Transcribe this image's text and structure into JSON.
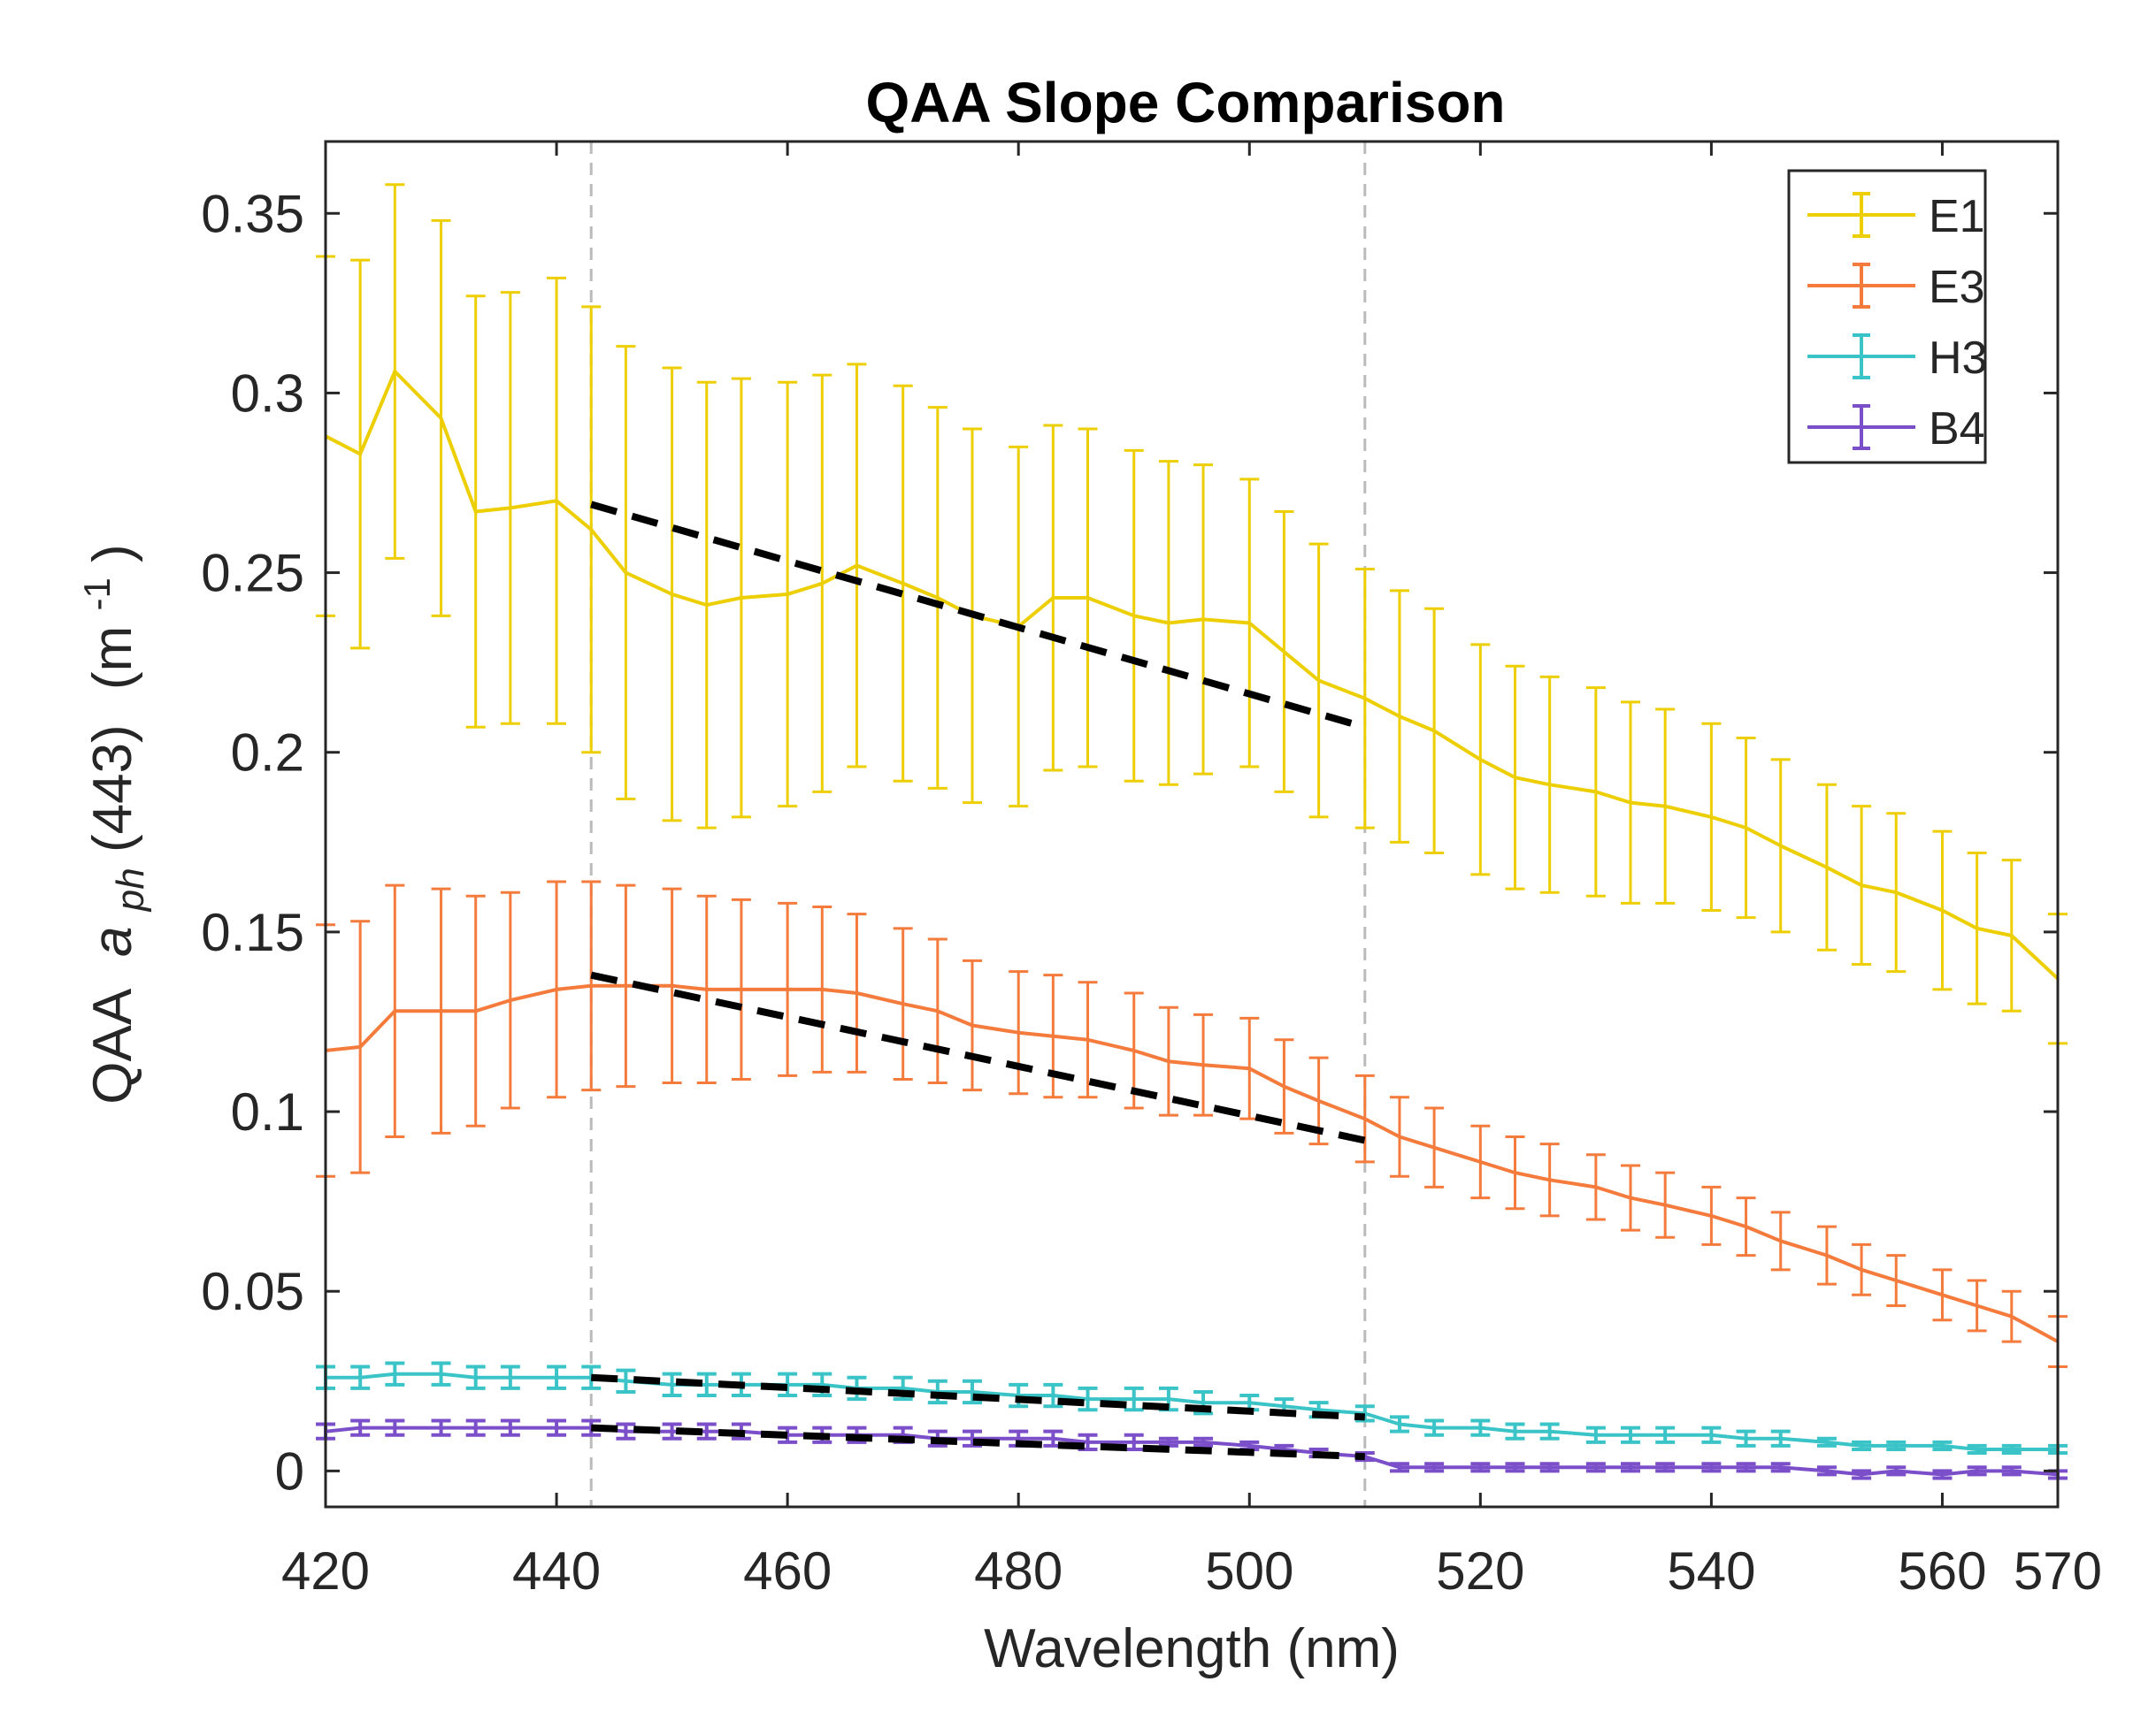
{
  "chart_data": {
    "type": "line",
    "title": "QAA Slope Comparison",
    "xlabel": "Wavelength (nm)",
    "ylabel": {
      "prefix": "QAA",
      "symbol": "a",
      "subscript": "ph",
      "band": "(443)",
      "unit_open": "(m",
      "unit_exp": "-1",
      "unit_close": ")"
    },
    "xlim": [
      420,
      570
    ],
    "ylim": [
      -0.01,
      0.37
    ],
    "xticks": [
      420,
      440,
      460,
      480,
      500,
      520,
      540,
      560,
      570
    ],
    "xtick_labels": [
      "420",
      "440",
      "460",
      "480",
      "500",
      "520",
      "540",
      "560",
      "570"
    ],
    "yticks": [
      0,
      0.05,
      0.1,
      0.15,
      0.2,
      0.25,
      0.3,
      0.35
    ],
    "ytick_labels": [
      "0",
      "0.05",
      "0.1",
      "0.15",
      "0.2",
      "0.25",
      "0.3",
      "0.35"
    ],
    "vlines": [
      443,
      510
    ],
    "legend_position": "top-right",
    "x": [
      420,
      423,
      426,
      430,
      433,
      436,
      440,
      443,
      446,
      450,
      453,
      456,
      460,
      463,
      466,
      470,
      473,
      476,
      480,
      483,
      486,
      490,
      493,
      496,
      500,
      503,
      506,
      510,
      513,
      516,
      520,
      523,
      526,
      530,
      533,
      536,
      540,
      543,
      546,
      550,
      553,
      556,
      560,
      563,
      566,
      570
    ],
    "series": [
      {
        "name": "E1",
        "color": "#EDCE00",
        "values": [
          0.288,
          0.283,
          0.306,
          0.293,
          0.267,
          0.268,
          0.27,
          0.262,
          0.25,
          0.244,
          0.241,
          0.243,
          0.244,
          0.247,
          0.252,
          0.247,
          0.243,
          0.238,
          0.235,
          0.243,
          0.243,
          0.238,
          0.236,
          0.237,
          0.236,
          0.228,
          0.22,
          0.215,
          0.21,
          0.206,
          0.198,
          0.193,
          0.191,
          0.189,
          0.186,
          0.185,
          0.182,
          0.179,
          0.174,
          0.168,
          0.163,
          0.161,
          0.156,
          0.151,
          0.149,
          0.137
        ],
        "errors": [
          0.05,
          0.054,
          0.052,
          0.055,
          0.06,
          0.06,
          0.062,
          0.062,
          0.063,
          0.063,
          0.062,
          0.061,
          0.059,
          0.058,
          0.056,
          0.055,
          0.053,
          0.052,
          0.05,
          0.048,
          0.047,
          0.046,
          0.045,
          0.043,
          0.04,
          0.039,
          0.038,
          0.036,
          0.035,
          0.034,
          0.032,
          0.031,
          0.03,
          0.029,
          0.028,
          0.027,
          0.026,
          0.025,
          0.024,
          0.023,
          0.022,
          0.022,
          0.022,
          0.021,
          0.021,
          0.018
        ]
      },
      {
        "name": "E3",
        "color": "#F47B3C",
        "values": [
          0.117,
          0.118,
          0.128,
          0.128,
          0.128,
          0.131,
          0.134,
          0.135,
          0.135,
          0.135,
          0.134,
          0.134,
          0.134,
          0.134,
          0.133,
          0.13,
          0.128,
          0.124,
          0.122,
          0.121,
          0.12,
          0.117,
          0.114,
          0.113,
          0.112,
          0.107,
          0.103,
          0.098,
          0.093,
          0.09,
          0.086,
          0.083,
          0.081,
          0.079,
          0.076,
          0.074,
          0.071,
          0.068,
          0.064,
          0.06,
          0.056,
          0.053,
          0.049,
          0.046,
          0.043,
          0.036
        ],
        "errors": [
          0.035,
          0.035,
          0.035,
          0.034,
          0.032,
          0.03,
          0.03,
          0.029,
          0.028,
          0.027,
          0.026,
          0.025,
          0.024,
          0.023,
          0.022,
          0.021,
          0.02,
          0.018,
          0.017,
          0.017,
          0.016,
          0.016,
          0.015,
          0.014,
          0.014,
          0.013,
          0.012,
          0.012,
          0.011,
          0.011,
          0.01,
          0.01,
          0.01,
          0.009,
          0.009,
          0.009,
          0.008,
          0.008,
          0.008,
          0.008,
          0.007,
          0.007,
          0.007,
          0.007,
          0.007,
          0.007
        ]
      },
      {
        "name": "H3",
        "color": "#3BC4C7",
        "values": [
          0.026,
          0.026,
          0.027,
          0.027,
          0.026,
          0.026,
          0.026,
          0.026,
          0.025,
          0.024,
          0.024,
          0.024,
          0.024,
          0.024,
          0.023,
          0.023,
          0.022,
          0.022,
          0.021,
          0.021,
          0.02,
          0.02,
          0.02,
          0.019,
          0.019,
          0.018,
          0.017,
          0.016,
          0.013,
          0.012,
          0.012,
          0.011,
          0.011,
          0.01,
          0.01,
          0.01,
          0.01,
          0.009,
          0.009,
          0.008,
          0.007,
          0.007,
          0.007,
          0.006,
          0.006,
          0.006
        ],
        "errors": [
          0.003,
          0.003,
          0.003,
          0.003,
          0.003,
          0.003,
          0.003,
          0.003,
          0.003,
          0.003,
          0.003,
          0.003,
          0.003,
          0.003,
          0.003,
          0.003,
          0.003,
          0.003,
          0.003,
          0.003,
          0.003,
          0.003,
          0.003,
          0.003,
          0.002,
          0.002,
          0.002,
          0.002,
          0.002,
          0.002,
          0.002,
          0.002,
          0.002,
          0.002,
          0.002,
          0.002,
          0.002,
          0.002,
          0.002,
          0.001,
          0.001,
          0.001,
          0.001,
          0.001,
          0.001,
          0.001
        ]
      },
      {
        "name": "B4",
        "color": "#7B4FC9",
        "values": [
          0.011,
          0.012,
          0.012,
          0.012,
          0.012,
          0.012,
          0.012,
          0.012,
          0.011,
          0.011,
          0.011,
          0.011,
          0.01,
          0.01,
          0.01,
          0.01,
          0.009,
          0.009,
          0.009,
          0.009,
          0.008,
          0.008,
          0.008,
          0.008,
          0.007,
          0.006,
          0.005,
          0.004,
          0.001,
          0.001,
          0.001,
          0.001,
          0.001,
          0.001,
          0.001,
          0.001,
          0.001,
          0.001,
          0.001,
          0.0,
          -0.001,
          0.0,
          -0.001,
          0.0,
          0.0,
          -0.001
        ],
        "errors": [
          0.002,
          0.002,
          0.002,
          0.002,
          0.002,
          0.002,
          0.002,
          0.002,
          0.002,
          0.002,
          0.002,
          0.002,
          0.002,
          0.002,
          0.002,
          0.002,
          0.002,
          0.002,
          0.002,
          0.002,
          0.002,
          0.002,
          0.001,
          0.001,
          0.001,
          0.001,
          0.001,
          0.001,
          0.001,
          0.001,
          0.001,
          0.001,
          0.001,
          0.001,
          0.001,
          0.001,
          0.001,
          0.001,
          0.001,
          0.001,
          0.001,
          0.001,
          0.001,
          0.001,
          0.001,
          0.001
        ]
      }
    ],
    "slope_fits": [
      {
        "series": "E1",
        "x": [
          443,
          510
        ],
        "y": [
          0.269,
          0.207
        ]
      },
      {
        "series": "E3",
        "x": [
          443,
          510
        ],
        "y": [
          0.138,
          0.092
        ]
      },
      {
        "series": "H3",
        "x": [
          443,
          510
        ],
        "y": [
          0.026,
          0.015
        ]
      },
      {
        "series": "B4",
        "x": [
          443,
          510
        ],
        "y": [
          0.012,
          0.004
        ]
      }
    ],
    "fit_color": "#000000",
    "vline_color": "#BBBBBB"
  }
}
